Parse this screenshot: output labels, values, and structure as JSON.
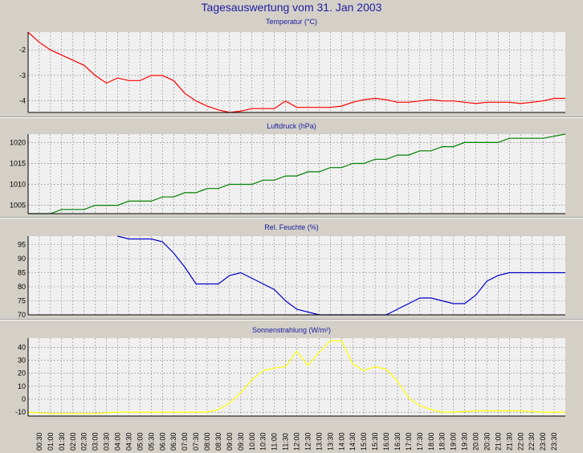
{
  "title": "Tagesauswertung vom 31. Jan 2003",
  "colors": {
    "background": "#d4d0c8",
    "plot_background": "#f0f0f0",
    "grid": "#888888",
    "title_color": "#1c1ca0"
  },
  "time_labels": [
    "00:30",
    "01:00",
    "01:30",
    "02:00",
    "02:30",
    "03:00",
    "03:30",
    "04:00",
    "04:30",
    "05:00",
    "05:30",
    "06:00",
    "06:30",
    "07:00",
    "07:30",
    "08:00",
    "08:30",
    "09:00",
    "09:30",
    "10:00",
    "10:30",
    "11:00",
    "11:30",
    "12:00",
    "12:30",
    "13:00",
    "13:30",
    "14:00",
    "14:30",
    "15:00",
    "15:30",
    "16:00",
    "16:30",
    "17:00",
    "17:30",
    "18:00",
    "18:30",
    "19:00",
    "19:30",
    "20:00",
    "20:30",
    "21:00",
    "21:30",
    "22:00",
    "22:30",
    "23:00",
    "23:30"
  ],
  "chart_data": [
    {
      "type": "line",
      "title": "Temperatur (°C)",
      "color": "#ff0000",
      "ylim": [
        -4.45,
        -1.3
      ],
      "yticks": [
        -2,
        -3,
        -4
      ],
      "x": [
        0,
        0.5,
        1,
        1.5,
        2,
        2.5,
        3,
        3.5,
        4,
        4.5,
        5,
        5.5,
        6,
        6.5,
        7,
        7.5,
        8,
        8.5,
        9,
        9.5,
        10,
        10.5,
        11,
        11.5,
        12,
        12.5,
        13,
        13.5,
        14,
        14.5,
        15,
        15.5,
        16,
        16.5,
        17,
        17.5,
        18,
        18.5,
        19,
        19.5,
        20,
        20.5,
        21,
        21.5,
        22,
        22.5,
        23,
        23.5,
        24
      ],
      "values": [
        -1.3,
        -1.7,
        -2.0,
        -2.2,
        -2.4,
        -2.6,
        -3.0,
        -3.3,
        -3.1,
        -3.2,
        -3.2,
        -3.0,
        -3.0,
        -3.2,
        -3.7,
        -4.0,
        -4.2,
        -4.35,
        -4.45,
        -4.4,
        -4.3,
        -4.3,
        -4.3,
        -4.0,
        -4.25,
        -4.25,
        -4.25,
        -4.25,
        -4.2,
        -4.05,
        -3.95,
        -3.9,
        -3.95,
        -4.05,
        -4.05,
        -4.0,
        -3.95,
        -4.0,
        -4.0,
        -4.05,
        -4.1,
        -4.05,
        -4.05,
        -4.05,
        -4.1,
        -4.05,
        -4.0,
        -3.9,
        -3.9
      ]
    },
    {
      "type": "line",
      "title": "Luftdruck (hPa)",
      "color": "#008000",
      "ylim": [
        1003,
        1022
      ],
      "yticks": [
        1005,
        1010,
        1015,
        1020
      ],
      "x": [
        0,
        1,
        1.5,
        2.5,
        3,
        4,
        4.5,
        5.5,
        6,
        6.5,
        7,
        7.5,
        8,
        8.5,
        9,
        10,
        10.5,
        11,
        11.5,
        12,
        12.5,
        13,
        13.5,
        14,
        14.5,
        15,
        15.5,
        16,
        16.5,
        17,
        17.5,
        18,
        18.5,
        19,
        19.5,
        20,
        20.5,
        21,
        21.5,
        23,
        24
      ],
      "values": [
        1003,
        1003,
        1004,
        1004,
        1005,
        1005,
        1006,
        1006,
        1007,
        1007,
        1008,
        1008,
        1009,
        1009,
        1010,
        1010,
        1011,
        1011,
        1012,
        1012,
        1013,
        1013,
        1014,
        1014,
        1015,
        1015,
        1016,
        1016,
        1017,
        1017,
        1018,
        1018,
        1019,
        1019,
        1020,
        1020,
        1020,
        1020,
        1021,
        1021,
        1022
      ]
    },
    {
      "type": "line",
      "title": "Rel. Feuchte (%)",
      "color": "#0000c8",
      "ylim": [
        70,
        98
      ],
      "yticks": [
        95,
        90,
        85,
        80,
        75,
        70
      ],
      "x": [
        4,
        4.5,
        5.5,
        6,
        6.5,
        7,
        7.5,
        8,
        8.5,
        9,
        9.5,
        10,
        10.5,
        11,
        11.5,
        12,
        12.5,
        13,
        13.5,
        14,
        14.5,
        15,
        15.5,
        16,
        16.5,
        17,
        17.5,
        18,
        18.5,
        19,
        19.5,
        20,
        20.5,
        21,
        21.5,
        22,
        22.5,
        23,
        23.5,
        24
      ],
      "values": [
        98,
        97,
        97,
        96,
        92,
        87,
        81,
        81,
        81,
        84,
        85,
        83,
        81,
        79,
        75,
        72,
        71,
        70,
        70,
        70,
        70,
        70,
        70,
        70,
        72,
        74,
        76,
        76,
        75,
        74,
        74,
        77,
        82,
        84,
        85,
        85,
        85,
        85,
        85,
        85
      ]
    },
    {
      "type": "line",
      "title": "Sonnenstrahlung (W/m²)",
      "color": "#ffff00",
      "ylim": [
        -13,
        47
      ],
      "yticks": [
        40,
        30,
        20,
        10,
        0,
        -10
      ],
      "x": [
        0,
        1,
        2,
        3,
        4,
        5,
        6,
        7,
        7.5,
        8,
        8.5,
        9,
        9.5,
        10,
        10.5,
        11,
        11.5,
        12,
        12.5,
        13,
        13.5,
        14,
        14.5,
        15,
        15.5,
        16,
        16.5,
        17,
        17.5,
        18,
        18.5,
        19,
        20,
        21,
        22,
        23,
        24
      ],
      "values": [
        -10,
        -11,
        -11,
        -11,
        -10,
        -10,
        -10,
        -10,
        -10,
        -10,
        -8,
        -3,
        5,
        15,
        22,
        24,
        25,
        37,
        26,
        36,
        45,
        45,
        27,
        22,
        25,
        23,
        14,
        1,
        -5,
        -8,
        -10,
        -10,
        -9,
        -9,
        -9,
        -10,
        -10
      ]
    }
  ]
}
